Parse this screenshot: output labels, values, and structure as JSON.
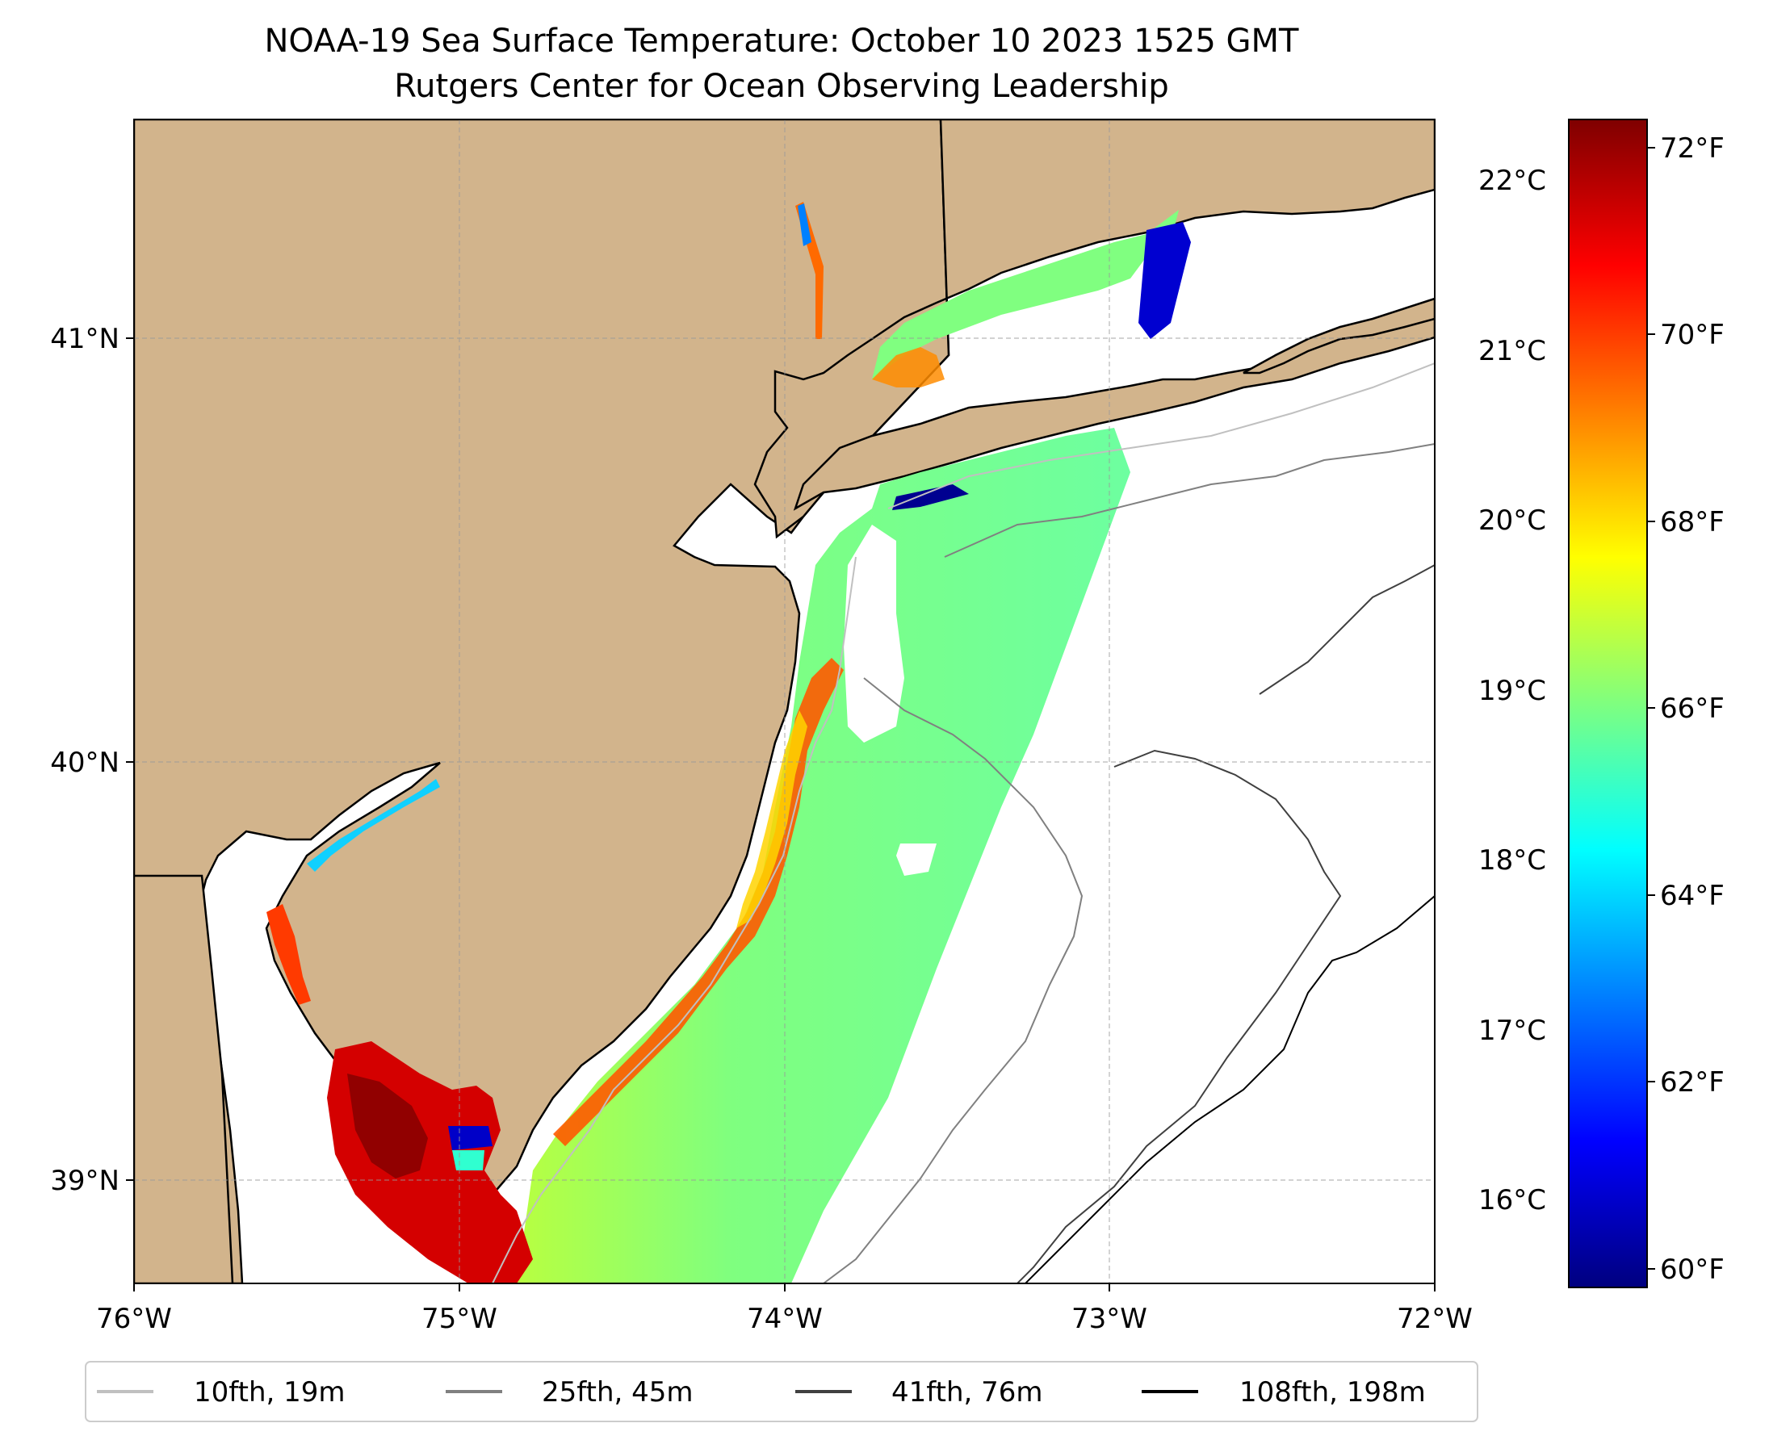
{
  "title": {
    "line1": "NOAA-19 Sea Surface Temperature: October 10 2023 1525 GMT",
    "line2": "Rutgers Center for Ocean Observing Leadership"
  },
  "map": {
    "lon_range": [
      -76,
      -72
    ],
    "lat_range": [
      38.7,
      41.5
    ],
    "lon_ticks": [
      {
        "value": -76,
        "label": "76°W"
      },
      {
        "value": -75,
        "label": "75°W"
      },
      {
        "value": -74,
        "label": "74°W"
      },
      {
        "value": -73,
        "label": "73°W"
      },
      {
        "value": -72,
        "label": "72°W"
      }
    ],
    "lat_ticks": [
      {
        "value": 39,
        "label": "39°N"
      },
      {
        "value": 40,
        "label": "40°N"
      },
      {
        "value": 41,
        "label": "41°N"
      }
    ],
    "land_color": "#d2b48c",
    "ocean_color": "#ffffff"
  },
  "colorbar": {
    "c_ticks": [
      {
        "value": 16,
        "label": "16°C"
      },
      {
        "value": 17,
        "label": "17°C"
      },
      {
        "value": 18,
        "label": "18°C"
      },
      {
        "value": 19,
        "label": "19°C"
      },
      {
        "value": 20,
        "label": "20°C"
      },
      {
        "value": 21,
        "label": "21°C"
      },
      {
        "value": 22,
        "label": "22°C"
      }
    ],
    "f_ticks": [
      {
        "value": 60,
        "label": "60°F"
      },
      {
        "value": 62,
        "label": "62°F"
      },
      {
        "value": 64,
        "label": "64°F"
      },
      {
        "value": 66,
        "label": "66°F"
      },
      {
        "value": 68,
        "label": "68°F"
      },
      {
        "value": 70,
        "label": "70°F"
      },
      {
        "value": 72,
        "label": "72°F"
      }
    ],
    "range_f": [
      59.8,
      72.3
    ],
    "colors": [
      "#00007f",
      "#0000ff",
      "#007fff",
      "#00ffff",
      "#7fff7f",
      "#ffff00",
      "#ff7f00",
      "#ff0000",
      "#7f0000"
    ]
  },
  "legend": {
    "items": [
      {
        "label": "10fth, 19m",
        "color": "#c0c0c0"
      },
      {
        "label": "25fth, 45m",
        "color": "#808080"
      },
      {
        "label": "41fth, 76m",
        "color": "#404040"
      },
      {
        "label": "108fth, 198m",
        "color": "#000000"
      }
    ]
  }
}
